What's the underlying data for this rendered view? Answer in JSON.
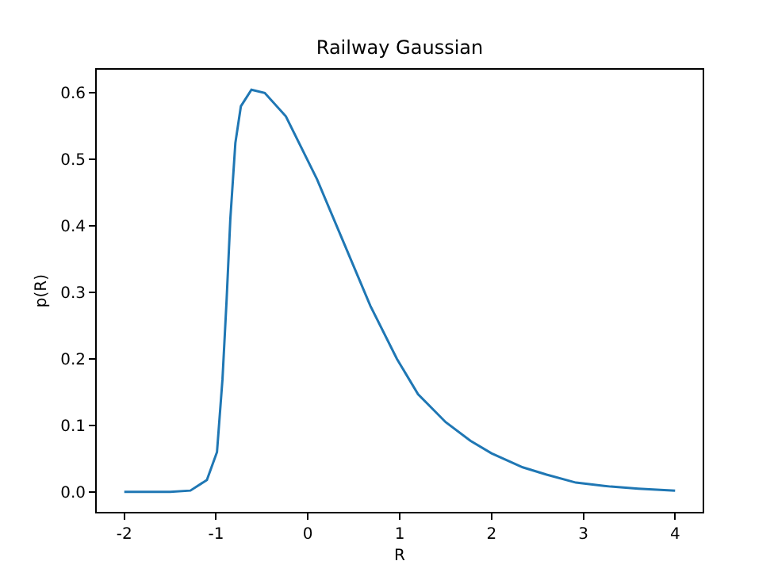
{
  "chart_data": {
    "type": "line",
    "title": "Railway Gaussian",
    "xlabel": "R",
    "ylabel": "p(R)",
    "x": [
      -2,
      -1.5,
      -1.28,
      -1.1,
      -0.99,
      -0.93,
      -0.885,
      -0.845,
      -0.79,
      -0.73,
      -0.615,
      -0.47,
      -0.24,
      0.1,
      0.39,
      0.68,
      0.97,
      1.2,
      1.5,
      1.77,
      2,
      2.34,
      2.6,
      2.92,
      3.3,
      3.6,
      4
    ],
    "series": [
      {
        "color": "#1f77b4",
        "values": [
          0,
          0,
          0.002,
          0.018,
          0.06,
          0.17,
          0.29,
          0.41,
          0.525,
          0.58,
          0.605,
          0.6,
          0.565,
          0.47,
          0.375,
          0.28,
          0.2,
          0.147,
          0.105,
          0.077,
          0.058,
          0.037,
          0.026,
          0.014,
          0.008,
          0.005,
          0.002
        ]
      }
    ],
    "xlim": [
      -2.3,
      4.3
    ],
    "xticks": [
      -2,
      -1,
      0,
      1,
      2,
      3,
      4
    ],
    "ylim": [
      -0.03,
      0.635
    ],
    "yticks": [
      {
        "value": 0,
        "label": "0.0"
      },
      0.1,
      0.2,
      0.3,
      0.4,
      0.5,
      0.6
    ],
    "legend": false,
    "marker": "none",
    "line_style": "solid"
  }
}
